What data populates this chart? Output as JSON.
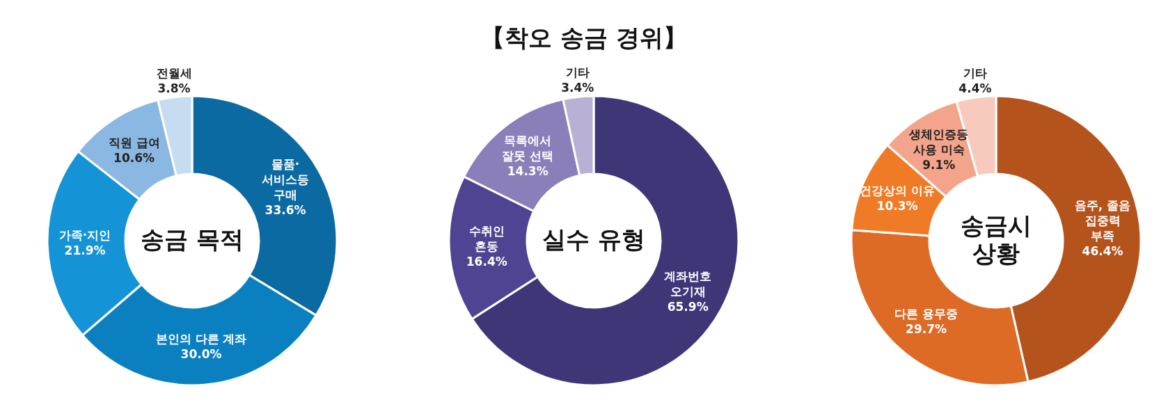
{
  "chart_data": [
    {
      "type": "donut",
      "title": "송금 목적",
      "annotations": [
        "【착오 송금 경위】"
      ],
      "categories": [
        "물품·\n서비스등\n구매",
        "본인의 다른 계좌",
        "가족·지인",
        "직원 급여",
        "전월세"
      ],
      "values": [
        33.6,
        30.0,
        21.9,
        10.6,
        3.8
      ],
      "value_labels": [
        "33.6%",
        "30.0%",
        "21.9%",
        "10.6%",
        "3.8%"
      ],
      "colors": [
        "#0b6aa2",
        "#0b80c1",
        "#1494d7",
        "#8ab8e2",
        "#c6dcf1"
      ]
    },
    {
      "type": "donut",
      "title": "실수 유형",
      "categories": [
        "계좌번호\n오기재",
        "수취인\n혼동",
        "목록에서\n잘못 선택",
        "기타"
      ],
      "values": [
        65.9,
        16.4,
        14.3,
        3.4
      ],
      "value_labels": [
        "65.9%",
        "16.4%",
        "14.3%",
        "3.4%"
      ],
      "colors": [
        "#3f3678",
        "#4f4491",
        "#8a7fb9",
        "#b8b1d5"
      ]
    },
    {
      "type": "donut",
      "title": "송금시\n상황",
      "categories": [
        "음주, 졸음\n집중력\n부족",
        "다른 용무중",
        "건강상의 이유",
        "생체인증등\n사용 미숙",
        "기타"
      ],
      "values": [
        46.4,
        29.7,
        10.3,
        9.1,
        4.4
      ],
      "value_labels": [
        "46.4%",
        "29.7%",
        "10.3%",
        "9.1%",
        "4.4%"
      ],
      "colors": [
        "#b5531c",
        "#dd6a25",
        "#f07b26",
        "#f4a48b",
        "#f8c9bd"
      ]
    }
  ]
}
